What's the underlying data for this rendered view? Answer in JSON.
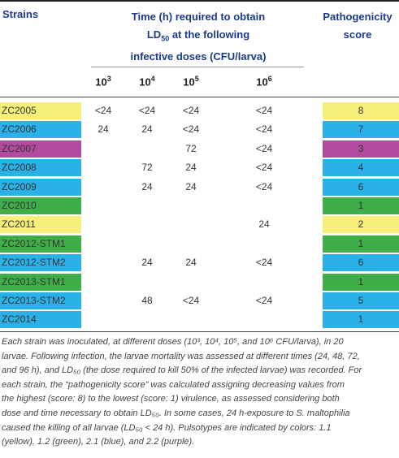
{
  "header": {
    "strains": "Strains",
    "time_line1": "Time (h) required to obtain",
    "time_line2a": "LD",
    "time_line2sub": "50",
    "time_line2b": " at the following",
    "time_line3": "infective doses (CFU/larva)",
    "path_line1": "Pathogenicity",
    "path_line2": "score"
  },
  "doses": [
    {
      "base": "10",
      "exp": "3"
    },
    {
      "base": "10",
      "exp": "4"
    },
    {
      "base": "10",
      "exp": "5"
    },
    {
      "base": "10",
      "exp": "6"
    }
  ],
  "colors": {
    "yellow": "#f6ef7a",
    "blue": "#2ab1e8",
    "purple": "#b24b9f",
    "green": "#3fae49"
  },
  "rows": [
    {
      "strain": "ZC2005",
      "d3": "<24",
      "d4": "<24",
      "d5": "<24",
      "d6": "<24",
      "score": "8",
      "color": "#f6ef7a"
    },
    {
      "strain": "ZC2006",
      "d3": "24",
      "d4": "24",
      "d5": "<24",
      "d6": "<24",
      "score": "7",
      "color": "#2ab1e8"
    },
    {
      "strain": "ZC2007",
      "d3": "",
      "d4": "",
      "d5": "72",
      "d6": "<24",
      "score": "3",
      "color": "#b24b9f"
    },
    {
      "strain": "ZC2008",
      "d3": "",
      "d4": "72",
      "d5": "24",
      "d6": "<24",
      "score": "4",
      "color": "#2ab1e8"
    },
    {
      "strain": "ZC2009",
      "d3": "",
      "d4": "24",
      "d5": "24",
      "d6": "<24",
      "score": "6",
      "color": "#2ab1e8"
    },
    {
      "strain": "ZC2010",
      "d3": "",
      "d4": "",
      "d5": "",
      "d6": "",
      "score": "1",
      "color": "#3fae49"
    },
    {
      "strain": "ZC2011",
      "d3": "",
      "d4": "",
      "d5": "",
      "d6": "24",
      "score": "2",
      "color": "#f6ef7a"
    },
    {
      "strain": "ZC2012-STM1",
      "d3": "",
      "d4": "",
      "d5": "",
      "d6": "",
      "score": "1",
      "color": "#3fae49"
    },
    {
      "strain": "ZC2012-STM2",
      "d3": "",
      "d4": "24",
      "d5": "24",
      "d6": "<24",
      "score": "6",
      "color": "#2ab1e8"
    },
    {
      "strain": "ZC2013-STM1",
      "d3": "",
      "d4": "",
      "d5": "",
      "d6": "",
      "score": "1",
      "color": "#3fae49"
    },
    {
      "strain": "ZC2013-STM2",
      "d3": "",
      "d4": "48",
      "d5": "<24",
      "d6": "<24",
      "score": "5",
      "color": "#2ab1e8"
    },
    {
      "strain": "ZC2014",
      "d3": "",
      "d4": "",
      "d5": "",
      "d6": "",
      "score": "1",
      "color": "#2ab1e8"
    }
  ],
  "footnote_lines": [
    "Each strain was inoculated, at different doses (10³, 10⁴, 10⁵, and 10⁶ CFU/larva), in 20",
    "larvae. Following infection, the larvae mortality was assessed at different times (24, 48, 72,",
    "and 96 h), and LD₅₀ (the dose required to kill 50% of the infected larvae) was recorded. For",
    "each strain, the “pathogenicity score” was calculated assigning decreasing values from",
    "the highest (score: 8) to the lowest (score: 1) virulence, as assessed considering both",
    "dose and time necessary to obtain LD₅₀. In some cases, 24 h-exposure to S. maltophilia",
    "caused the killing of all larvae (LD₅₀ < 24 h). Pulsotypes are indicated by colors: 1.1",
    "(yellow), 1.2 (green), 2.1 (blue), and 2.2 (purple)."
  ]
}
